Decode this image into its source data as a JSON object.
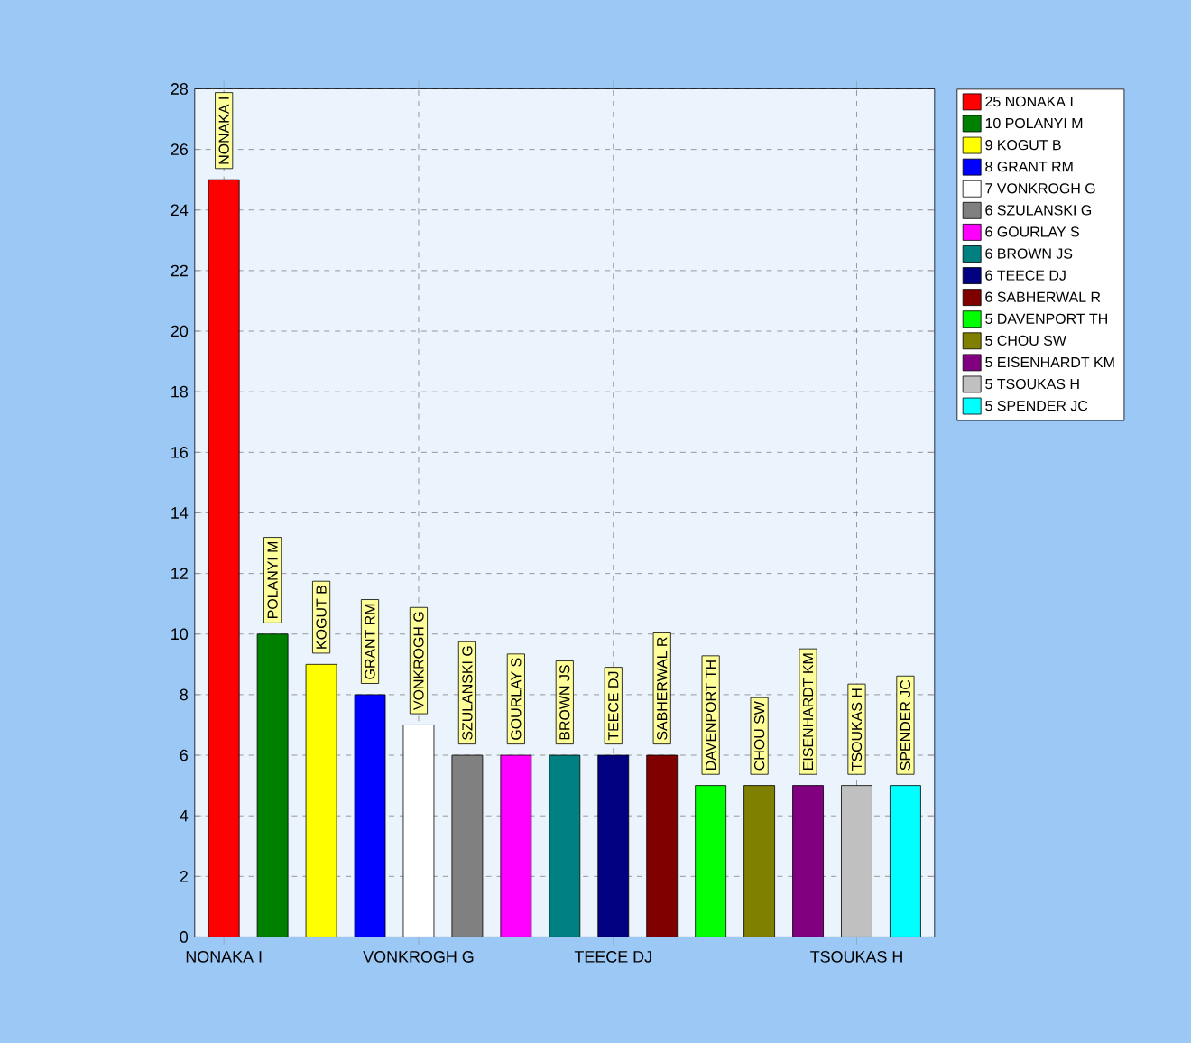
{
  "chart_data": {
    "type": "bar",
    "categories": [
      "NONAKA I",
      null,
      null,
      null,
      "VONKROGH G",
      null,
      null,
      null,
      "TEECE DJ",
      null,
      null,
      null,
      null,
      "TSOUKAS H",
      null
    ],
    "series": [
      {
        "name": "25 NONAKA I",
        "color": "#ff0000",
        "values": [
          25,
          null,
          null,
          null,
          null,
          null,
          null,
          null,
          null,
          null,
          null,
          null,
          null,
          null,
          null
        ]
      },
      {
        "name": "10 POLANYI M",
        "color": "#008000",
        "values": [
          null,
          10,
          null,
          null,
          null,
          null,
          null,
          null,
          null,
          null,
          null,
          null,
          null,
          null,
          null
        ]
      },
      {
        "name": "9 KOGUT B",
        "color": "#ffff00",
        "values": [
          null,
          null,
          9,
          null,
          null,
          null,
          null,
          null,
          null,
          null,
          null,
          null,
          null,
          null,
          null
        ]
      },
      {
        "name": "8 GRANT RM",
        "color": "#0000ff",
        "values": [
          null,
          null,
          null,
          8,
          null,
          null,
          null,
          null,
          null,
          null,
          null,
          null,
          null,
          null,
          null
        ]
      },
      {
        "name": "7 VONKROGH G",
        "color": "#ffffff",
        "values": [
          null,
          null,
          null,
          null,
          7,
          null,
          null,
          null,
          null,
          null,
          null,
          null,
          null,
          null,
          null
        ]
      },
      {
        "name": "6 SZULANSKI G",
        "color": "#808080",
        "values": [
          null,
          null,
          null,
          null,
          null,
          6,
          null,
          null,
          null,
          null,
          null,
          null,
          null,
          null,
          null
        ]
      },
      {
        "name": "6 GOURLAY S",
        "color": "#ff00ff",
        "values": [
          null,
          null,
          null,
          null,
          null,
          null,
          6,
          null,
          null,
          null,
          null,
          null,
          null,
          null,
          null
        ]
      },
      {
        "name": "6 BROWN JS",
        "color": "#008080",
        "values": [
          null,
          null,
          null,
          null,
          null,
          null,
          null,
          6,
          null,
          null,
          null,
          null,
          null,
          null,
          null
        ]
      },
      {
        "name": "6 TEECE DJ",
        "color": "#000080",
        "values": [
          null,
          null,
          null,
          null,
          null,
          null,
          null,
          null,
          6,
          null,
          null,
          null,
          null,
          null,
          null
        ]
      },
      {
        "name": "6 SABHERWAL R",
        "color": "#800000",
        "values": [
          null,
          null,
          null,
          null,
          null,
          null,
          null,
          null,
          null,
          6,
          null,
          null,
          null,
          null,
          null
        ]
      },
      {
        "name": "5 DAVENPORT TH",
        "color": "#00ff00",
        "values": [
          null,
          null,
          null,
          null,
          null,
          null,
          null,
          null,
          null,
          null,
          5,
          null,
          null,
          null,
          null
        ]
      },
      {
        "name": "5 CHOU SW",
        "color": "#808000",
        "values": [
          null,
          null,
          null,
          null,
          null,
          null,
          null,
          null,
          null,
          null,
          null,
          5,
          null,
          null,
          null
        ]
      },
      {
        "name": "5 EISENHARDT KM",
        "color": "#800080",
        "values": [
          null,
          null,
          null,
          null,
          null,
          null,
          null,
          null,
          null,
          null,
          null,
          null,
          5,
          null,
          null
        ]
      },
      {
        "name": "5 TSOUKAS H",
        "color": "#c0c0c0",
        "values": [
          null,
          null,
          null,
          null,
          null,
          null,
          null,
          null,
          null,
          null,
          null,
          null,
          null,
          5,
          null
        ]
      },
      {
        "name": "5 SPENDER JC",
        "color": "#00ffff",
        "values": [
          null,
          null,
          null,
          null,
          null,
          null,
          null,
          null,
          null,
          null,
          null,
          null,
          null,
          null,
          5
        ]
      }
    ],
    "annotations": [
      {
        "text": "NONAKA I",
        "y": 25
      },
      {
        "text": "POLANYI M",
        "y": 10
      },
      {
        "text": "KOGUT B",
        "y": 9
      },
      {
        "text": "GRANT RM",
        "y": 8
      },
      {
        "text": "VONKROGH G",
        "y": 7
      },
      {
        "text": "SZULANSKI G",
        "y": 6
      },
      {
        "text": "GOURLAY S",
        "y": 6
      },
      {
        "text": "BROWN JS",
        "y": 6
      },
      {
        "text": "TEECE DJ",
        "y": 6
      },
      {
        "text": "SABHERWAL R",
        "y": 6
      },
      {
        "text": "DAVENPORT TH",
        "y": 5
      },
      {
        "text": "CHOU SW",
        "y": 5
      },
      {
        "text": "EISENHARDT KM",
        "y": 5
      },
      {
        "text": "TSOUKAS H",
        "y": 5
      },
      {
        "text": "SPENDER JC",
        "y": 5
      }
    ],
    "ylim": [
      0,
      28
    ],
    "yticks": [
      0,
      2,
      4,
      6,
      8,
      10,
      12,
      14,
      16,
      18,
      20,
      22,
      24,
      26,
      28
    ],
    "grid": true,
    "legend": "top right"
  }
}
